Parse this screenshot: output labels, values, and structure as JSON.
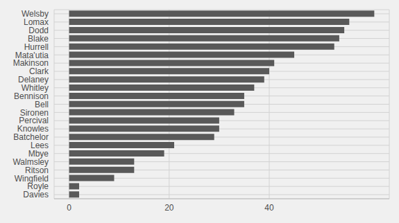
{
  "chart_data": {
    "type": "bar",
    "orientation": "horizontal",
    "categories": [
      "Welsby",
      "Lomax",
      "Dodd",
      "Blake",
      "Hurrell",
      "Mata'utia",
      "Makinson",
      "Clark",
      "Delaney",
      "Whitley",
      "Bennison",
      "Bell",
      "Sironen",
      "Percival",
      "Knowles",
      "Batchelor",
      "Lees",
      "Mbye",
      "Walmsley",
      "Ritson",
      "Wingfield",
      "Royle",
      "Davies"
    ],
    "values": [
      61,
      56,
      55,
      54,
      53,
      45,
      41,
      40,
      39,
      37,
      35,
      35,
      33,
      30,
      30,
      29,
      21,
      19,
      13,
      13,
      9,
      2,
      2
    ],
    "color": "#595959",
    "xlim": [
      -3,
      64
    ],
    "xticks": [
      0,
      20,
      40
    ],
    "grid": true
  }
}
